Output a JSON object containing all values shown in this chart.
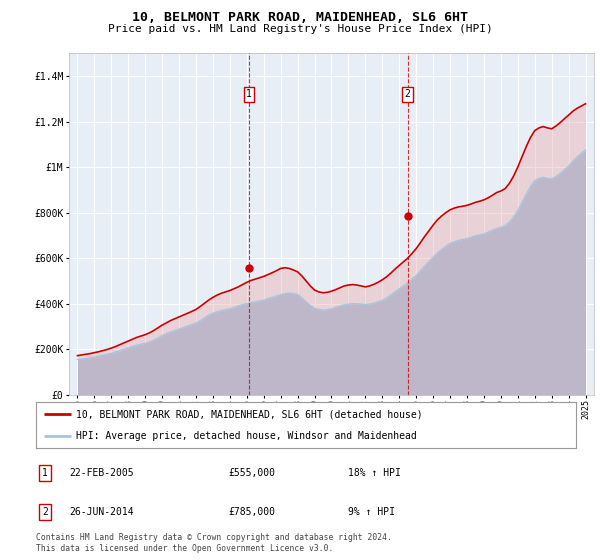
{
  "title": "10, BELMONT PARK ROAD, MAIDENHEAD, SL6 6HT",
  "subtitle": "Price paid vs. HM Land Registry's House Price Index (HPI)",
  "legend_line1": "10, BELMONT PARK ROAD, MAIDENHEAD, SL6 6HT (detached house)",
  "legend_line2": "HPI: Average price, detached house, Windsor and Maidenhead",
  "sale1_date": "22-FEB-2005",
  "sale1_price": "£555,000",
  "sale1_hpi": "18% ↑ HPI",
  "sale1_year": 2005.13,
  "sale1_value": 555000,
  "sale2_date": "26-JUN-2014",
  "sale2_price": "£785,000",
  "sale2_hpi": "9% ↑ HPI",
  "sale2_year": 2014.49,
  "sale2_value": 785000,
  "footer": "Contains HM Land Registry data © Crown copyright and database right 2024.\nThis data is licensed under the Open Government Licence v3.0.",
  "hpi_color": "#a8c4e0",
  "price_color": "#cc0000",
  "background_color": "#ffffff",
  "plot_bg_color": "#e8eef5",
  "grid_color": "#ffffff",
  "ylim": [
    0,
    1500000
  ],
  "xlim_start": 1994.5,
  "xlim_end": 2025.5,
  "years": [
    1995.0,
    1995.25,
    1995.5,
    1995.75,
    1996.0,
    1996.25,
    1996.5,
    1996.75,
    1997.0,
    1997.25,
    1997.5,
    1997.75,
    1998.0,
    1998.25,
    1998.5,
    1998.75,
    1999.0,
    1999.25,
    1999.5,
    1999.75,
    2000.0,
    2000.25,
    2000.5,
    2000.75,
    2001.0,
    2001.25,
    2001.5,
    2001.75,
    2002.0,
    2002.25,
    2002.5,
    2002.75,
    2003.0,
    2003.25,
    2003.5,
    2003.75,
    2004.0,
    2004.25,
    2004.5,
    2004.75,
    2005.0,
    2005.25,
    2005.5,
    2005.75,
    2006.0,
    2006.25,
    2006.5,
    2006.75,
    2007.0,
    2007.25,
    2007.5,
    2007.75,
    2008.0,
    2008.25,
    2008.5,
    2008.75,
    2009.0,
    2009.25,
    2009.5,
    2009.75,
    2010.0,
    2010.25,
    2010.5,
    2010.75,
    2011.0,
    2011.25,
    2011.5,
    2011.75,
    2012.0,
    2012.25,
    2012.5,
    2012.75,
    2013.0,
    2013.25,
    2013.5,
    2013.75,
    2014.0,
    2014.25,
    2014.5,
    2014.75,
    2015.0,
    2015.25,
    2015.5,
    2015.75,
    2016.0,
    2016.25,
    2016.5,
    2016.75,
    2017.0,
    2017.25,
    2017.5,
    2017.75,
    2018.0,
    2018.25,
    2018.5,
    2018.75,
    2019.0,
    2019.25,
    2019.5,
    2019.75,
    2020.0,
    2020.25,
    2020.5,
    2020.75,
    2021.0,
    2021.25,
    2021.5,
    2021.75,
    2022.0,
    2022.25,
    2022.5,
    2022.75,
    2023.0,
    2023.25,
    2023.5,
    2023.75,
    2024.0,
    2024.25,
    2024.5,
    2024.75,
    2025.0
  ],
  "hpi_values": [
    155000,
    157000,
    160000,
    163000,
    166000,
    170000,
    174000,
    178000,
    182000,
    188000,
    194000,
    200000,
    206000,
    212000,
    218000,
    222000,
    226000,
    232000,
    240000,
    250000,
    260000,
    268000,
    276000,
    282000,
    288000,
    295000,
    302000,
    308000,
    315000,
    325000,
    338000,
    350000,
    358000,
    365000,
    370000,
    374000,
    378000,
    384000,
    390000,
    396000,
    400000,
    405000,
    408000,
    412000,
    416000,
    422000,
    428000,
    434000,
    440000,
    444000,
    446000,
    445000,
    440000,
    425000,
    408000,
    392000,
    380000,
    375000,
    372000,
    374000,
    378000,
    384000,
    390000,
    395000,
    398000,
    400000,
    400000,
    398000,
    396000,
    398000,
    402000,
    408000,
    415000,
    425000,
    438000,
    452000,
    465000,
    478000,
    492000,
    508000,
    524000,
    545000,
    565000,
    585000,
    604000,
    622000,
    638000,
    652000,
    665000,
    672000,
    678000,
    682000,
    686000,
    692000,
    698000,
    702000,
    706000,
    714000,
    722000,
    730000,
    735000,
    742000,
    758000,
    780000,
    810000,
    845000,
    880000,
    915000,
    940000,
    950000,
    955000,
    950000,
    948000,
    958000,
    972000,
    988000,
    1005000,
    1025000,
    1045000,
    1060000,
    1075000
  ],
  "price_values": [
    172000,
    175000,
    178000,
    181000,
    185000,
    189000,
    194000,
    199000,
    205000,
    212000,
    220000,
    228000,
    236000,
    244000,
    252000,
    258000,
    264000,
    272000,
    282000,
    294000,
    306000,
    316000,
    326000,
    334000,
    342000,
    350000,
    358000,
    366000,
    375000,
    388000,
    402000,
    416000,
    428000,
    438000,
    446000,
    452000,
    458000,
    466000,
    474000,
    484000,
    494000,
    502000,
    508000,
    514000,
    520000,
    528000,
    536000,
    545000,
    555000,
    558000,
    555000,
    548000,
    540000,
    522000,
    500000,
    478000,
    460000,
    452000,
    448000,
    450000,
    455000,
    462000,
    470000,
    478000,
    482000,
    484000,
    482000,
    478000,
    474000,
    478000,
    485000,
    494000,
    505000,
    518000,
    534000,
    552000,
    568000,
    584000,
    600000,
    620000,
    642000,
    668000,
    695000,
    720000,
    745000,
    768000,
    785000,
    800000,
    812000,
    820000,
    825000,
    828000,
    832000,
    838000,
    845000,
    850000,
    856000,
    865000,
    876000,
    888000,
    895000,
    905000,
    928000,
    960000,
    1000000,
    1045000,
    1090000,
    1130000,
    1160000,
    1172000,
    1178000,
    1172000,
    1168000,
    1180000,
    1195000,
    1212000,
    1228000,
    1245000,
    1258000,
    1268000,
    1278000
  ]
}
